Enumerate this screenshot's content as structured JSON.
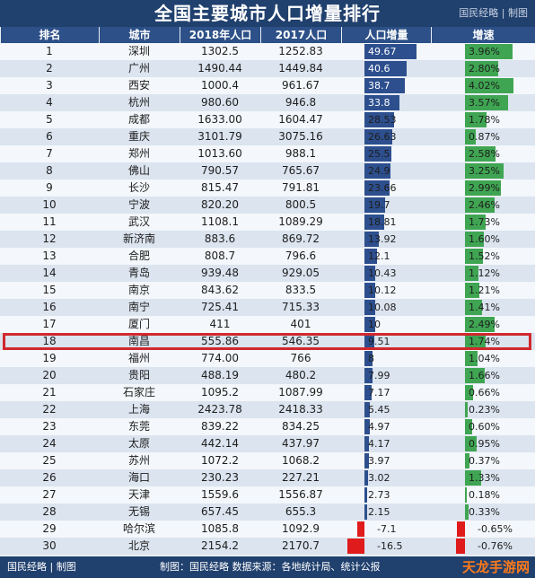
{
  "title": "全国主要城市人口增量排行",
  "brand": "国民经略 | 制图",
  "footer": {
    "brand": "国民经略 | 制图",
    "note": "制图：国民经略  数据来源：各地统计局、统计公报"
  },
  "watermark": "天龙手游网",
  "colors": {
    "header_bg": "#20406e",
    "col_header_bg": "#2c5087",
    "pos_increase": "#2d4f8e",
    "pos_growth": "#3fa552",
    "negative": "#e01b1b",
    "highlight": "#d0282e"
  },
  "chart_data": {
    "type": "table",
    "title": "全国主要城市人口增量排行",
    "columns": [
      "排名",
      "城市",
      "2018年人口",
      "2017人口",
      "人口增量",
      "增速"
    ],
    "highlight_rank": 18,
    "rows": [
      {
        "rank": "1",
        "city": "深圳",
        "pop2018": "1302.5",
        "pop2017": "1252.83",
        "increase": 49.67,
        "increase_label": "49.67",
        "growth": 3.96,
        "growth_label": "3.96%"
      },
      {
        "rank": "2",
        "city": "广州",
        "pop2018": "1490.44",
        "pop2017": "1449.84",
        "increase": 40.6,
        "increase_label": "40.6",
        "growth": 2.8,
        "growth_label": "2.80%"
      },
      {
        "rank": "3",
        "city": "西安",
        "pop2018": "1000.4",
        "pop2017": "961.67",
        "increase": 38.7,
        "increase_label": "38.7",
        "growth": 4.02,
        "growth_label": "4.02%"
      },
      {
        "rank": "4",
        "city": "杭州",
        "pop2018": "980.60",
        "pop2017": "946.8",
        "increase": 33.8,
        "increase_label": "33.8",
        "growth": 3.57,
        "growth_label": "3.57%"
      },
      {
        "rank": "5",
        "city": "成都",
        "pop2018": "1633.00",
        "pop2017": "1604.47",
        "increase": 28.53,
        "increase_label": "28.53",
        "growth": 1.78,
        "growth_label": "1.78%"
      },
      {
        "rank": "6",
        "city": "重庆",
        "pop2018": "3101.79",
        "pop2017": "3075.16",
        "increase": 26.63,
        "increase_label": "26.63",
        "growth": 0.87,
        "growth_label": "0.87%"
      },
      {
        "rank": "7",
        "city": "郑州",
        "pop2018": "1013.60",
        "pop2017": "988.1",
        "increase": 25.5,
        "increase_label": "25.5",
        "growth": 2.58,
        "growth_label": "2.58%"
      },
      {
        "rank": "8",
        "city": "佛山",
        "pop2018": "790.57",
        "pop2017": "765.67",
        "increase": 24.9,
        "increase_label": "24.9",
        "growth": 3.25,
        "growth_label": "3.25%"
      },
      {
        "rank": "9",
        "city": "长沙",
        "pop2018": "815.47",
        "pop2017": "791.81",
        "increase": 23.66,
        "increase_label": "23.66",
        "growth": 2.99,
        "growth_label": "2.99%"
      },
      {
        "rank": "10",
        "city": "宁波",
        "pop2018": "820.20",
        "pop2017": "800.5",
        "increase": 19.7,
        "increase_label": "19.7",
        "growth": 2.46,
        "growth_label": "2.46%"
      },
      {
        "rank": "11",
        "city": "武汉",
        "pop2018": "1108.1",
        "pop2017": "1089.29",
        "increase": 18.81,
        "increase_label": "18.81",
        "growth": 1.73,
        "growth_label": "1.73%"
      },
      {
        "rank": "12",
        "city": "新济南",
        "pop2018": "883.6",
        "pop2017": "869.72",
        "increase": 13.92,
        "increase_label": "13.92",
        "growth": 1.6,
        "growth_label": "1.60%"
      },
      {
        "rank": "13",
        "city": "合肥",
        "pop2018": "808.7",
        "pop2017": "796.6",
        "increase": 12.1,
        "increase_label": "12.1",
        "growth": 1.52,
        "growth_label": "1.52%"
      },
      {
        "rank": "14",
        "city": "青岛",
        "pop2018": "939.48",
        "pop2017": "929.05",
        "increase": 10.43,
        "increase_label": "10.43",
        "growth": 1.12,
        "growth_label": "1.12%"
      },
      {
        "rank": "15",
        "city": "南京",
        "pop2018": "843.62",
        "pop2017": "833.5",
        "increase": 10.12,
        "increase_label": "10.12",
        "growth": 1.21,
        "growth_label": "1.21%"
      },
      {
        "rank": "16",
        "city": "南宁",
        "pop2018": "725.41",
        "pop2017": "715.33",
        "increase": 10.08,
        "increase_label": "10.08",
        "growth": 1.41,
        "growth_label": "1.41%"
      },
      {
        "rank": "17",
        "city": "厦门",
        "pop2018": "411",
        "pop2017": "401",
        "increase": 10,
        "increase_label": "10",
        "growth": 2.49,
        "growth_label": "2.49%"
      },
      {
        "rank": "18",
        "city": "南昌",
        "pop2018": "555.86",
        "pop2017": "546.35",
        "increase": 9.51,
        "increase_label": "9.51",
        "growth": 1.74,
        "growth_label": "1.74%"
      },
      {
        "rank": "19",
        "city": "福州",
        "pop2018": "774.00",
        "pop2017": "766",
        "increase": 8,
        "increase_label": "8",
        "growth": 1.04,
        "growth_label": "1.04%"
      },
      {
        "rank": "20",
        "city": "贵阳",
        "pop2018": "488.19",
        "pop2017": "480.2",
        "increase": 7.99,
        "increase_label": "7.99",
        "growth": 1.66,
        "growth_label": "1.66%"
      },
      {
        "rank": "21",
        "city": "石家庄",
        "pop2018": "1095.2",
        "pop2017": "1087.99",
        "increase": 7.17,
        "increase_label": "7.17",
        "growth": 0.66,
        "growth_label": "0.66%"
      },
      {
        "rank": "22",
        "city": "上海",
        "pop2018": "2423.78",
        "pop2017": "2418.33",
        "increase": 5.45,
        "increase_label": "5.45",
        "growth": 0.23,
        "growth_label": "0.23%"
      },
      {
        "rank": "23",
        "city": "东莞",
        "pop2018": "839.22",
        "pop2017": "834.25",
        "increase": 4.97,
        "increase_label": "4.97",
        "growth": 0.6,
        "growth_label": "0.60%"
      },
      {
        "rank": "24",
        "city": "太原",
        "pop2018": "442.14",
        "pop2017": "437.97",
        "increase": 4.17,
        "increase_label": "4.17",
        "growth": 0.95,
        "growth_label": "0.95%"
      },
      {
        "rank": "25",
        "city": "苏州",
        "pop2018": "1072.2",
        "pop2017": "1068.2",
        "increase": 3.97,
        "increase_label": "3.97",
        "growth": 0.37,
        "growth_label": "0.37%"
      },
      {
        "rank": "26",
        "city": "海口",
        "pop2018": "230.23",
        "pop2017": "227.21",
        "increase": 3.02,
        "increase_label": "3.02",
        "growth": 1.33,
        "growth_label": "1.33%"
      },
      {
        "rank": "27",
        "city": "天津",
        "pop2018": "1559.6",
        "pop2017": "1556.87",
        "increase": 2.73,
        "increase_label": "2.73",
        "growth": 0.18,
        "growth_label": "0.18%"
      },
      {
        "rank": "28",
        "city": "无锡",
        "pop2018": "657.45",
        "pop2017": "655.3",
        "increase": 2.15,
        "increase_label": "2.15",
        "growth": 0.33,
        "growth_label": "0.33%"
      },
      {
        "rank": "29",
        "city": "哈尔滨",
        "pop2018": "1085.8",
        "pop2017": "1092.9",
        "increase": -7.1,
        "increase_label": "-7.1",
        "growth": -0.65,
        "growth_label": "-0.65%"
      },
      {
        "rank": "30",
        "city": "北京",
        "pop2018": "2154.2",
        "pop2017": "2170.7",
        "increase": -16.5,
        "increase_label": "-16.5",
        "growth": -0.76,
        "growth_label": "-0.76%"
      }
    ]
  }
}
